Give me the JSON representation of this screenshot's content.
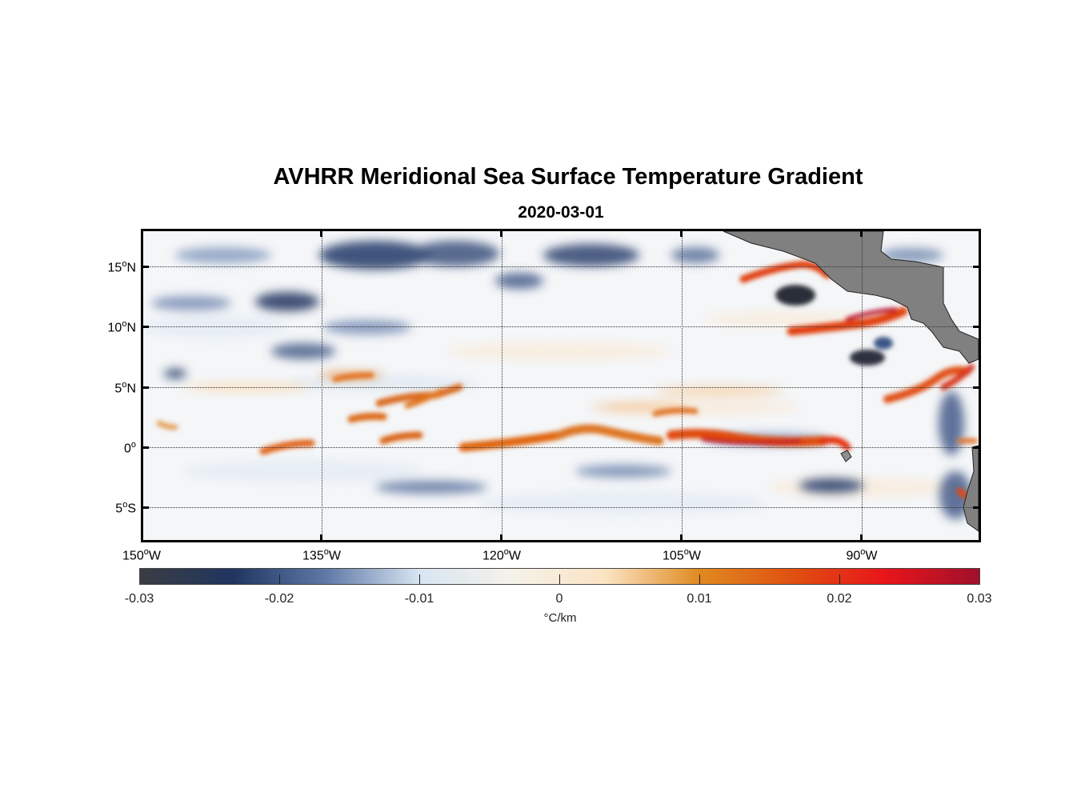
{
  "title": "AVHRR Meridional Sea Surface Temperature Gradient",
  "subtitle": "2020-03-01",
  "map": {
    "lon_range": [
      -150,
      -83
    ],
    "lat_range": [
      -8,
      18
    ],
    "lon_ticks": [
      {
        "value": -150,
        "label": "150",
        "suffix": "W"
      },
      {
        "value": -135,
        "label": "135",
        "suffix": "W"
      },
      {
        "value": -120,
        "label": "120",
        "suffix": "W"
      },
      {
        "value": -105,
        "label": "105",
        "suffix": "W"
      },
      {
        "value": -90,
        "label": "90",
        "suffix": "W"
      }
    ],
    "lat_ticks": [
      {
        "value": 15,
        "label": "15",
        "suffix": "N"
      },
      {
        "value": 10,
        "label": "10",
        "suffix": "N"
      },
      {
        "value": 5,
        "label": "5",
        "suffix": "N"
      },
      {
        "value": 0,
        "label": "0",
        "suffix": ""
      },
      {
        "value": -5,
        "label": "5",
        "suffix": "S"
      }
    ],
    "degree_symbol": "o",
    "land_color": "#808080",
    "ocean_background": "#f4f6f8"
  },
  "colorbar": {
    "min": -0.03,
    "max": 0.03,
    "ticks": [
      "-0.03",
      "-0.02",
      "-0.01",
      "0",
      "0.01",
      "0.02",
      "0.03"
    ],
    "units": "°C/km",
    "colors": [
      "#3a3d42",
      "#1f3560",
      "#5f7aa8",
      "#d8e6f2",
      "#f5f2ea",
      "#fbe3c2",
      "#e08a20",
      "#e05010",
      "#e8141a",
      "#a0102c"
    ]
  }
}
